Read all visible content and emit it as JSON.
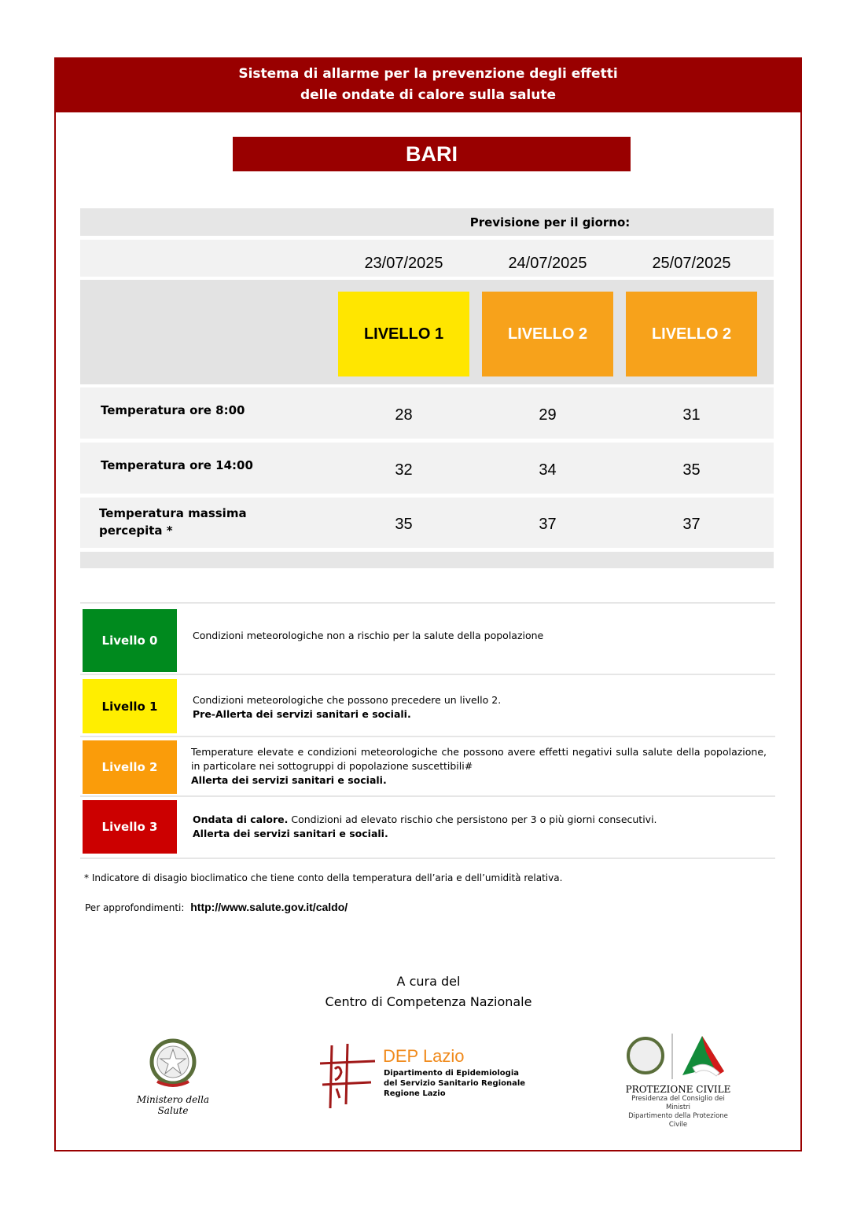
{
  "header": {
    "line1": "Sistema di allarme per la prevenzione degli effetti",
    "line2": "delle ondate di calore sulla salute"
  },
  "city": "BARI",
  "forecast": {
    "caption": "Previsione per il giorno:",
    "dates": [
      "23/07/2025",
      "24/07/2025",
      "25/07/2025"
    ],
    "levels": [
      {
        "label": "LIVELLO 1",
        "color": "#ffe600",
        "text_color": "#000000"
      },
      {
        "label": "LIVELLO 2",
        "color": "#f7a21b",
        "text_color": "#ffffff"
      },
      {
        "label": "LIVELLO 2",
        "color": "#f7a21b",
        "text_color": "#ffffff"
      }
    ],
    "rows": [
      {
        "label": "Temperatura ore 8:00",
        "values": [
          "28",
          "29",
          "31"
        ]
      },
      {
        "label": "Temperatura ore 14:00",
        "values": [
          "32",
          "34",
          "35"
        ]
      },
      {
        "label_line1": "Temperatura massima",
        "label_line2": "percepita *",
        "values": [
          "35",
          "37",
          "37"
        ]
      }
    ]
  },
  "legend": [
    {
      "label": "Livello 0",
      "color": "#008a1e",
      "text": "Condizioni meteorologiche non a rischio per la salute della popolazione"
    },
    {
      "label": "Livello 1",
      "color": "#ffee00",
      "text": "Condizioni meteorologiche che possono precedere un livello 2.",
      "bold": "Pre-Allerta dei servizi sanitari e sociali."
    },
    {
      "label": "Livello 2",
      "color": "#fa9c0a",
      "text": "Temperature elevate e condizioni meteorologiche che possono avere effetti negativi sulla salute della popolazione, in particolare nei sottogruppi di popolazione suscettibili#",
      "bold": "Allerta dei servizi sanitari e sociali."
    },
    {
      "label": "Livello 3",
      "color": "#cc0000",
      "lead": "Ondata di calore.",
      "text": " Condizioni ad elevato rischio che persistono per 3 o più giorni consecutivi.",
      "bold": "Allerta dei servizi sanitari e sociali."
    }
  ],
  "footnote": "* Indicatore di disagio bioclimatico che tiene conto della temperatura dell’aria e dell’umidità relativa.",
  "more_info": {
    "label": "Per approfondimenti:",
    "url": "http://www.salute.gov.it/caldo/"
  },
  "credits": {
    "line1": "A cura del",
    "line2": "Centro di Competenza Nazionale"
  },
  "logos": {
    "ministero": "Ministero della Salute",
    "dep": {
      "name": "DEP Lazio",
      "line1": "Dipartimento di Epidemiologia",
      "line2": "del Servizio Sanitario Regionale",
      "line3": "Regione Lazio"
    },
    "protezione": {
      "name": "PROTEZIONE CIVILE",
      "line1": "Presidenza del Consiglio dei Ministri",
      "line2": "Dipartimento della Protezione Civile"
    }
  }
}
